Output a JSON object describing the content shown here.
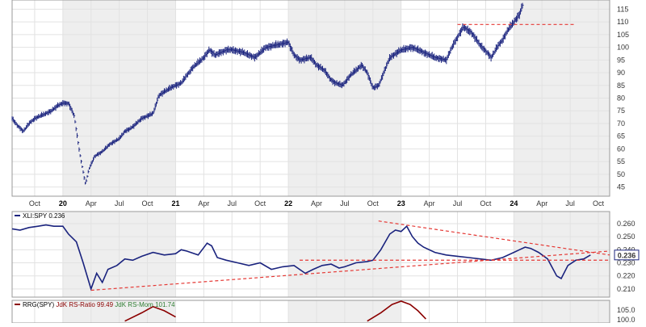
{
  "chart_data": [
    {
      "panel": "price",
      "type": "line",
      "style": "ohlc-bars",
      "color": "#1a237e",
      "y_ticks": [
        45,
        50,
        55,
        60,
        65,
        70,
        75,
        80,
        85,
        90,
        95,
        100,
        105,
        110,
        115
      ],
      "ylim": [
        42,
        118
      ],
      "x_start": 2019.55,
      "x_end": 2024.85,
      "x_ticks": [
        {
          "label": "Oct",
          "x": 2019.75,
          "year": false
        },
        {
          "label": "20",
          "x": 2020.0,
          "year": true
        },
        {
          "label": "Apr",
          "x": 2020.25,
          "year": false
        },
        {
          "label": "Jul",
          "x": 2020.5,
          "year": false
        },
        {
          "label": "Oct",
          "x": 2020.75,
          "year": false
        },
        {
          "label": "21",
          "x": 2021.0,
          "year": true
        },
        {
          "label": "Apr",
          "x": 2021.25,
          "year": false
        },
        {
          "label": "Jul",
          "x": 2021.5,
          "year": false
        },
        {
          "label": "Oct",
          "x": 2021.75,
          "year": false
        },
        {
          "label": "22",
          "x": 2022.0,
          "year": true
        },
        {
          "label": "Apr",
          "x": 2022.25,
          "year": false
        },
        {
          "label": "Jul",
          "x": 2022.5,
          "year": false
        },
        {
          "label": "Oct",
          "x": 2022.75,
          "year": false
        },
        {
          "label": "23",
          "x": 2023.0,
          "year": true
        },
        {
          "label": "Apr",
          "x": 2023.25,
          "year": false
        },
        {
          "label": "Jul",
          "x": 2023.5,
          "year": false
        },
        {
          "label": "Oct",
          "x": 2023.75,
          "year": false
        },
        {
          "label": "24",
          "x": 2024.0,
          "year": true
        },
        {
          "label": "Apr",
          "x": 2024.25,
          "year": false
        },
        {
          "label": "Jul",
          "x": 2024.5,
          "year": false
        },
        {
          "label": "Oct",
          "x": 2024.75,
          "year": false
        }
      ],
      "shaded_years": [
        2020,
        2022,
        2024
      ],
      "points": [
        [
          2019.55,
          72
        ],
        [
          2019.6,
          69
        ],
        [
          2019.65,
          67
        ],
        [
          2019.7,
          70
        ],
        [
          2019.75,
          72
        ],
        [
          2019.8,
          73
        ],
        [
          2019.85,
          74
        ],
        [
          2019.9,
          75
        ],
        [
          2019.95,
          77
        ],
        [
          2020.0,
          78
        ],
        [
          2020.05,
          78
        ],
        [
          2020.1,
          73
        ],
        [
          2020.15,
          58
        ],
        [
          2020.2,
          46
        ],
        [
          2020.23,
          52
        ],
        [
          2020.28,
          57
        ],
        [
          2020.35,
          59
        ],
        [
          2020.42,
          62
        ],
        [
          2020.5,
          64
        ],
        [
          2020.55,
          67
        ],
        [
          2020.6,
          68
        ],
        [
          2020.7,
          72
        ],
        [
          2020.8,
          74
        ],
        [
          2020.85,
          81
        ],
        [
          2020.95,
          84
        ],
        [
          2021.05,
          86
        ],
        [
          2021.15,
          92
        ],
        [
          2021.25,
          96
        ],
        [
          2021.3,
          99
        ],
        [
          2021.35,
          97
        ],
        [
          2021.45,
          99
        ],
        [
          2021.5,
          99
        ],
        [
          2021.6,
          98
        ],
        [
          2021.7,
          96
        ],
        [
          2021.8,
          100
        ],
        [
          2021.9,
          101
        ],
        [
          2022.0,
          102
        ],
        [
          2022.05,
          97
        ],
        [
          2022.1,
          95
        ],
        [
          2022.2,
          96
        ],
        [
          2022.25,
          93
        ],
        [
          2022.32,
          91
        ],
        [
          2022.38,
          87
        ],
        [
          2022.42,
          86
        ],
        [
          2022.48,
          85
        ],
        [
          2022.55,
          89
        ],
        [
          2022.65,
          93
        ],
        [
          2022.7,
          90
        ],
        [
          2022.75,
          84
        ],
        [
          2022.8,
          85
        ],
        [
          2022.9,
          96
        ],
        [
          2023.0,
          99
        ],
        [
          2023.1,
          100
        ],
        [
          2023.2,
          98
        ],
        [
          2023.3,
          96
        ],
        [
          2023.4,
          95
        ],
        [
          2023.45,
          100
        ],
        [
          2023.55,
          108
        ],
        [
          2023.62,
          106
        ],
        [
          2023.7,
          101
        ],
        [
          2023.8,
          96
        ],
        [
          2023.85,
          100
        ],
        [
          2023.9,
          103
        ],
        [
          2023.95,
          107
        ],
        [
          2024.0,
          110
        ],
        [
          2024.05,
          113
        ],
        [
          2024.08,
          117
        ]
      ],
      "resistance_line": {
        "from": [
          2023.5,
          109
        ],
        "to": [
          2024.55,
          109
        ],
        "color": "#e53935"
      }
    },
    {
      "panel": "ratio",
      "type": "line",
      "legend": "XLI:SPY 0.236",
      "color": "#1a237e",
      "y_ticks": [
        0.21,
        0.22,
        0.23,
        0.24,
        0.25,
        0.26
      ],
      "y_tick_labels": [
        "0.210",
        "0.220",
        "0.230",
        "0.240",
        "0.250",
        "0.260"
      ],
      "ylim": [
        0.205,
        0.268
      ],
      "current_value": "0.236",
      "points": [
        [
          2019.55,
          0.256
        ],
        [
          2019.62,
          0.255
        ],
        [
          2019.7,
          0.257
        ],
        [
          2019.78,
          0.258
        ],
        [
          2019.85,
          0.259
        ],
        [
          2019.92,
          0.258
        ],
        [
          2020.0,
          0.258
        ],
        [
          2020.05,
          0.252
        ],
        [
          2020.12,
          0.246
        ],
        [
          2020.18,
          0.23
        ],
        [
          2020.25,
          0.21
        ],
        [
          2020.3,
          0.222
        ],
        [
          2020.35,
          0.215
        ],
        [
          2020.4,
          0.225
        ],
        [
          2020.48,
          0.228
        ],
        [
          2020.55,
          0.233
        ],
        [
          2020.62,
          0.232
        ],
        [
          2020.7,
          0.235
        ],
        [
          2020.8,
          0.238
        ],
        [
          2020.9,
          0.236
        ],
        [
          2021.0,
          0.237
        ],
        [
          2021.05,
          0.24
        ],
        [
          2021.1,
          0.239
        ],
        [
          2021.2,
          0.236
        ],
        [
          2021.28,
          0.245
        ],
        [
          2021.32,
          0.243
        ],
        [
          2021.37,
          0.234
        ],
        [
          2021.45,
          0.232
        ],
        [
          2021.55,
          0.23
        ],
        [
          2021.65,
          0.228
        ],
        [
          2021.75,
          0.23
        ],
        [
          2021.85,
          0.225
        ],
        [
          2021.95,
          0.227
        ],
        [
          2022.05,
          0.228
        ],
        [
          2022.15,
          0.222
        ],
        [
          2022.22,
          0.225
        ],
        [
          2022.3,
          0.228
        ],
        [
          2022.38,
          0.229
        ],
        [
          2022.45,
          0.226
        ],
        [
          2022.5,
          0.227
        ],
        [
          2022.6,
          0.23
        ],
        [
          2022.7,
          0.231
        ],
        [
          2022.75,
          0.232
        ],
        [
          2022.82,
          0.24
        ],
        [
          2022.9,
          0.252
        ],
        [
          2022.95,
          0.255
        ],
        [
          2023.0,
          0.254
        ],
        [
          2023.05,
          0.258
        ],
        [
          2023.1,
          0.25
        ],
        [
          2023.15,
          0.245
        ],
        [
          2023.2,
          0.242
        ],
        [
          2023.3,
          0.238
        ],
        [
          2023.4,
          0.236
        ],
        [
          2023.5,
          0.235
        ],
        [
          2023.6,
          0.234
        ],
        [
          2023.7,
          0.233
        ],
        [
          2023.8,
          0.232
        ],
        [
          2023.9,
          0.234
        ],
        [
          2024.0,
          0.238
        ],
        [
          2024.05,
          0.24
        ],
        [
          2024.1,
          0.242
        ],
        [
          2024.15,
          0.241
        ],
        [
          2024.22,
          0.238
        ],
        [
          2024.3,
          0.233
        ],
        [
          2024.38,
          0.22
        ],
        [
          2024.42,
          0.218
        ],
        [
          2024.48,
          0.228
        ],
        [
          2024.55,
          0.232
        ],
        [
          2024.62,
          0.233
        ],
        [
          2024.68,
          0.236
        ]
      ],
      "trendlines": [
        {
          "from": [
            2020.25,
            0.209
          ],
          "to": [
            2024.85,
            0.239
          ],
          "color": "#e53935"
        },
        {
          "from": [
            2022.8,
            0.262
          ],
          "to": [
            2024.85,
            0.236
          ],
          "color": "#e53935"
        },
        {
          "from": [
            2022.1,
            0.232
          ],
          "to": [
            2024.85,
            0.232
          ],
          "color": "#e53935"
        }
      ]
    },
    {
      "panel": "rrg",
      "type": "line",
      "legend": {
        "title": "RRG(SPY)",
        "ratio": "JdK RS-Ratio 99.49",
        "momentum": "JdK RS-Mom 101.74"
      },
      "ratio_color": "#8b0000",
      "momentum_color": "#2e7d32",
      "y_tick_labels": [
        "105.0",
        "100.0"
      ],
      "ylim": [
        99,
        106
      ],
      "ratio_points": [
        [
          2020.55,
          101
        ],
        [
          2020.7,
          103
        ],
        [
          2020.8,
          104.5
        ],
        [
          2020.9,
          103.5
        ],
        [
          2021.0,
          102
        ],
        [
          2022.7,
          101
        ],
        [
          2022.82,
          103
        ],
        [
          2022.92,
          105
        ],
        [
          2023.0,
          105.8
        ],
        [
          2023.08,
          105
        ],
        [
          2023.15,
          103.5
        ],
        [
          2023.22,
          101.5
        ]
      ]
    }
  ]
}
